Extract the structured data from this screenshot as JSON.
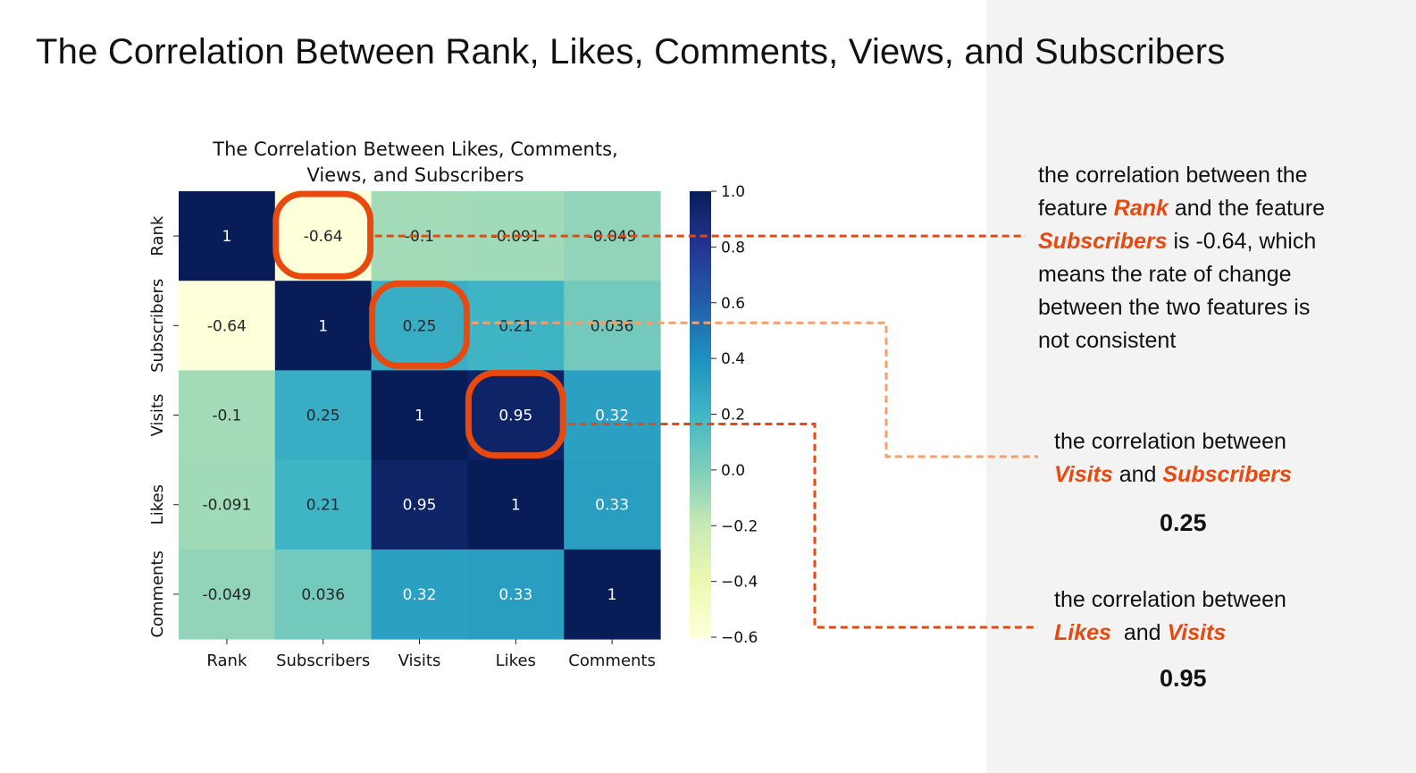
{
  "slide": {
    "title": "The Correlation Between Rank, Likes, Comments, Views, and Subscribers"
  },
  "chart_data": {
    "type": "heatmap",
    "title_lines": [
      "The Correlation Between Likes, Comments,",
      "Views, and Subscribers"
    ],
    "x_categories": [
      "Rank",
      "Subscribers",
      "Visits",
      "Likes",
      "Comments"
    ],
    "y_categories": [
      "Rank",
      "Subscribers",
      "Visits",
      "Likes",
      "Comments"
    ],
    "values": [
      [
        1,
        -0.64,
        -0.1,
        -0.091,
        -0.049
      ],
      [
        -0.64,
        1,
        0.25,
        0.21,
        0.036
      ],
      [
        -0.1,
        0.25,
        1,
        0.95,
        0.32
      ],
      [
        -0.091,
        0.21,
        0.95,
        1,
        0.33
      ],
      [
        -0.049,
        0.036,
        0.32,
        0.33,
        1
      ]
    ],
    "labels": [
      [
        "1",
        "-0.64",
        "-0.1",
        "-0.091",
        "-0.049"
      ],
      [
        "-0.64",
        "1",
        "0.25",
        "0.21",
        "0.036"
      ],
      [
        "-0.1",
        "0.25",
        "1",
        "0.95",
        "0.32"
      ],
      [
        "-0.091",
        "0.21",
        "0.95",
        "1",
        "0.33"
      ],
      [
        "-0.049",
        "0.036",
        "0.32",
        "0.33",
        "1"
      ]
    ],
    "colormap": "YlGnBu",
    "colorbar": {
      "range": [
        -0.6,
        1.0
      ],
      "ticks": [
        1.0,
        0.8,
        0.6,
        0.4,
        0.2,
        0.0,
        -0.2,
        -0.4,
        -0.6
      ],
      "tick_labels": [
        "1.0",
        "0.8",
        "0.6",
        "0.4",
        "0.2",
        "0.0",
        "−0.2",
        "−0.4",
        "−0.6"
      ]
    },
    "highlighted_cells": [
      {
        "row": 0,
        "col": 1,
        "style": "dark-orange"
      },
      {
        "row": 1,
        "col": 2,
        "style": "light-orange"
      },
      {
        "row": 2,
        "col": 3,
        "style": "dark-orange"
      }
    ]
  },
  "colors": {
    "highlight": "#e8490f",
    "dashed_dark": "#e8490f",
    "dashed_light": "#f5a06a"
  },
  "annotations": {
    "rank_subscribers": {
      "line1": "the correlation between the",
      "line2_pre": "feature ",
      "line2_hl": "Rank",
      "line2_post": " and the feature",
      "line3_hl": "Subscribers",
      "line3_post": " is -0.64, which",
      "line4": "means the rate of change",
      "line5": "between the two features is",
      "line6": "not consistent"
    },
    "visits_subscribers": {
      "line1": "the correlation between",
      "hl1": "Visits",
      "and": " and ",
      "hl2": "Subscribers",
      "value": "0.25"
    },
    "likes_visits": {
      "line1": "the correlation between",
      "hl1": "Likes",
      "and": "  and ",
      "hl2": "Visits",
      "value": "0.95"
    }
  }
}
